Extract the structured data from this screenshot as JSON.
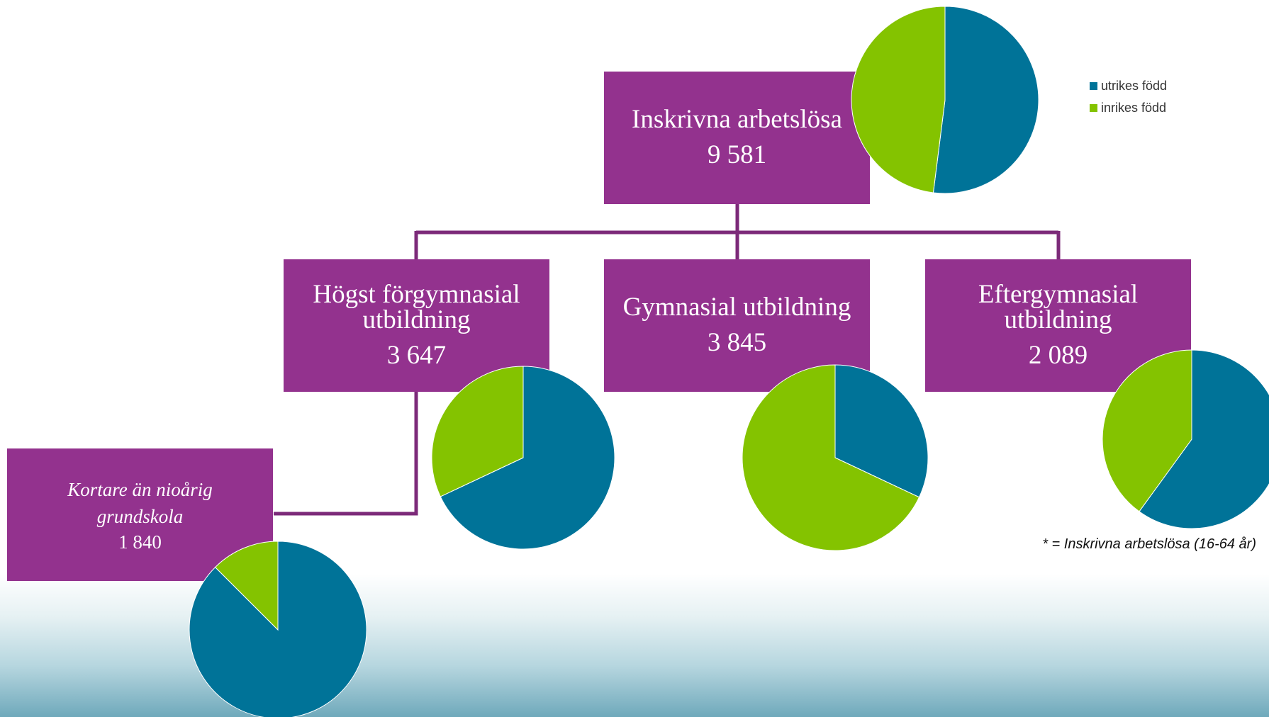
{
  "colors": {
    "utrikes": "#007398",
    "inrikes": "#84c300",
    "node": "#93328e",
    "line": "#7c2a79"
  },
  "nodes": {
    "total": {
      "label": "Inskrivna arbetslösa",
      "value": "9 581"
    },
    "forgymnasial": {
      "label": "Högst förgymnasial utbildning",
      "value": "3 647"
    },
    "gymnasial": {
      "label": "Gymnasial utbildning",
      "value": "3 845"
    },
    "eftergymnasial": {
      "label": "Eftergymnasial utbildning",
      "value": "2 089"
    },
    "grundskola": {
      "label": "Kortare än nioårig grundskola",
      "value": "1 840"
    }
  },
  "legend": [
    {
      "label": "utrikes född",
      "color": "#007398"
    },
    {
      "label": "inrikes född",
      "color": "#84c300"
    }
  ],
  "footnote": "* = Inskrivna arbetslösa (16-64 år)",
  "chart_data": [
    {
      "type": "pie",
      "title": "Inskrivna arbetslösa",
      "categories": [
        "utrikes född",
        "inrikes född"
      ],
      "values": [
        0.52,
        0.48
      ]
    },
    {
      "type": "pie",
      "title": "Högst förgymnasial utbildning",
      "categories": [
        "utrikes född",
        "inrikes född"
      ],
      "values": [
        0.68,
        0.32
      ]
    },
    {
      "type": "pie",
      "title": "Gymnasial utbildning",
      "categories": [
        "utrikes född",
        "inrikes född"
      ],
      "values": [
        0.32,
        0.68
      ]
    },
    {
      "type": "pie",
      "title": "Eftergymnasial utbildning",
      "categories": [
        "utrikes född",
        "inrikes född"
      ],
      "values": [
        0.6,
        0.4
      ]
    },
    {
      "type": "pie",
      "title": "Kortare än nioårig grundskola",
      "categories": [
        "utrikes född",
        "inrikes född"
      ],
      "values": [
        0.875,
        0.125
      ]
    }
  ]
}
